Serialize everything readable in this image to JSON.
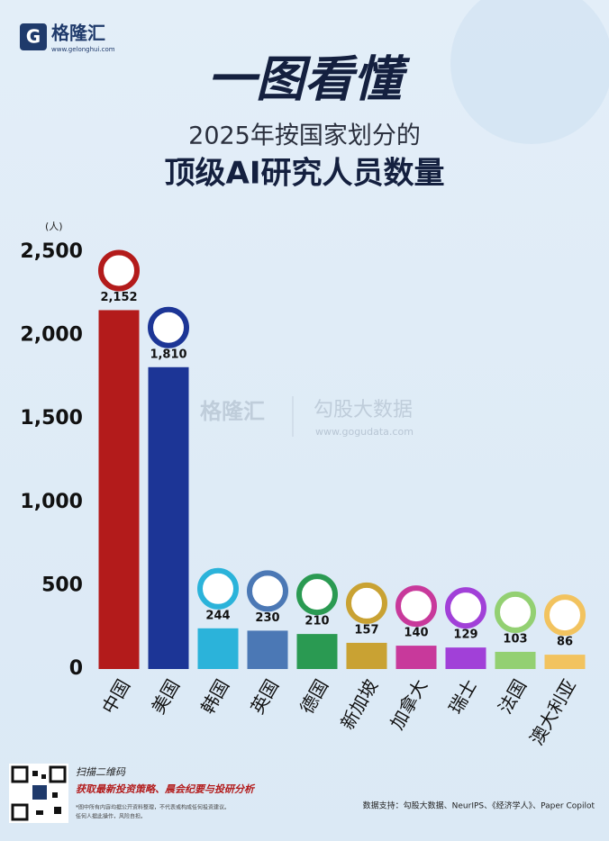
{
  "logo": {
    "name": "格隆汇",
    "url": "www.gelonghui.com"
  },
  "chart_data": {
    "type": "bar",
    "title": "一图看懂",
    "subtitle": [
      "2025年按国家划分的",
      "顶级AI研究人员数量"
    ],
    "ylabel": "(人)",
    "categories": [
      "中国",
      "美国",
      "韩国",
      "英国",
      "德国",
      "新加坡",
      "加拿大",
      "瑞士",
      "法国",
      "澳大利亚"
    ],
    "values": [
      2152,
      1810,
      244,
      230,
      210,
      157,
      140,
      129,
      103,
      86
    ],
    "value_labels": [
      "2,152",
      "1,810",
      "244",
      "230",
      "210",
      "157",
      "140",
      "129",
      "103",
      "86"
    ],
    "colors": [
      "#b31b1b",
      "#1c3596",
      "#2bb3da",
      "#4b78b5",
      "#2a9a52",
      "#c9a233",
      "#c8399b",
      "#a140d8",
      "#93d072",
      "#f2c35f"
    ],
    "ylim": [
      0,
      2500
    ],
    "yticks": [
      0,
      500,
      {
        "value": 1000,
        "label": "1,000"
      },
      {
        "value": 1500,
        "label": "1,500"
      },
      {
        "value": 2000,
        "label": "2,000"
      },
      {
        "value": 2500,
        "label": "2,500"
      }
    ],
    "grid": false
  },
  "watermark": {
    "brand": "格隆汇",
    "name": "勾股大数据",
    "url": "www.gogudata.com"
  },
  "footer": {
    "qr_prompt": "扫描二维码",
    "qr_tagline": "获取最新投资策略、晨会纪要与投研分析",
    "disclaimer": [
      "*图中所有内容均据公开资料整理，不代表或构成任何投资建议。",
      "任何人据此操作，风险自担。"
    ],
    "source": "数据支持：勾股大数据、NeurIPS、《经济学人》、Paper Copilot"
  }
}
